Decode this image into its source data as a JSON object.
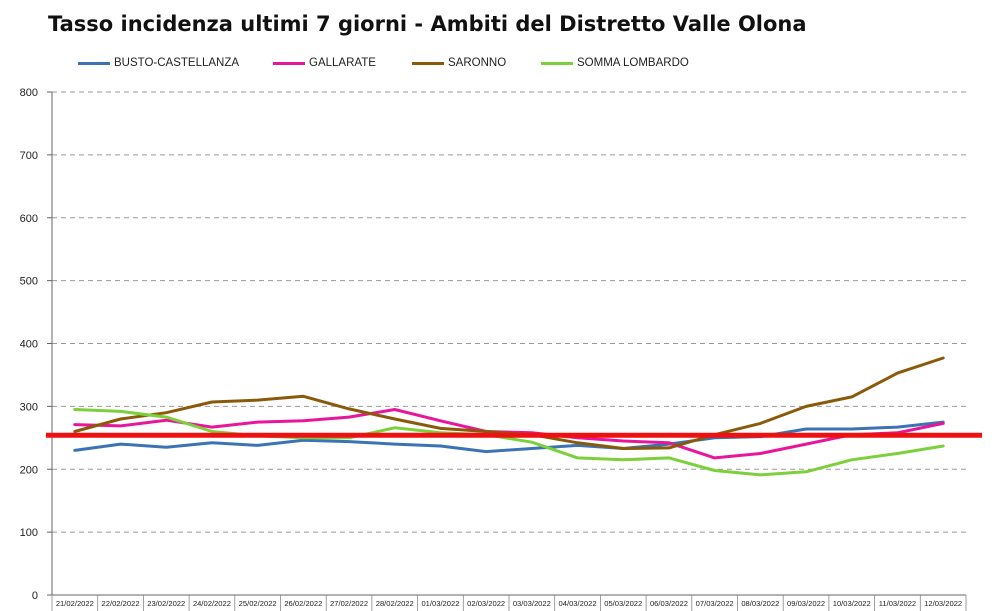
{
  "chart_data": {
    "type": "line",
    "title": "Tasso incidenza ultimi 7 giorni - Ambiti del Distretto Valle Olona",
    "xlabel": "",
    "ylabel": "",
    "ylim": [
      0,
      800
    ],
    "yticks": [
      "0",
      "100",
      "200",
      "300",
      "400",
      "500",
      "600",
      "700",
      "800"
    ],
    "grid": true,
    "legend_position": "top",
    "categories": [
      "21/02/2022",
      "22/02/2022",
      "23/02/2022",
      "24/02/2022",
      "25/02/2022",
      "26/02/2022",
      "27/02/2022",
      "28/02/2022",
      "01/03/2022",
      "02/03/2022",
      "03/03/2022",
      "04/03/2022",
      "05/03/2022",
      "06/03/2022",
      "07/03/2022",
      "08/03/2022",
      "09/03/2022",
      "10/03/2022",
      "11/03/2022",
      "12/03/2022"
    ],
    "series": [
      {
        "name": "BUSTO-CASTELLANZA",
        "color": "#3b73b5",
        "values": [
          230,
          240,
          235,
          242,
          238,
          246,
          244,
          240,
          237,
          228,
          233,
          238,
          233,
          240,
          250,
          252,
          264,
          264,
          267,
          275
        ]
      },
      {
        "name": "GALLARATE",
        "color": "#e8169a",
        "values": [
          271,
          269,
          278,
          267,
          275,
          277,
          283,
          295,
          277,
          260,
          258,
          250,
          245,
          242,
          218,
          225,
          240,
          255,
          258,
          273
        ]
      },
      {
        "name": "SARONNO",
        "color": "#8a5a0a",
        "values": [
          260,
          280,
          290,
          307,
          310,
          316,
          296,
          280,
          265,
          260,
          255,
          242,
          233,
          234,
          255,
          273,
          300,
          315,
          353,
          377
        ]
      },
      {
        "name": "SOMMA LOMBARDO",
        "color": "#7dcf3c",
        "values": [
          295,
          292,
          283,
          260,
          253,
          250,
          250,
          266,
          258,
          255,
          243,
          218,
          215,
          218,
          198,
          191,
          196,
          215,
          225,
          237
        ]
      }
    ],
    "reference_line": {
      "value": 254,
      "color": "#ee1111"
    }
  }
}
